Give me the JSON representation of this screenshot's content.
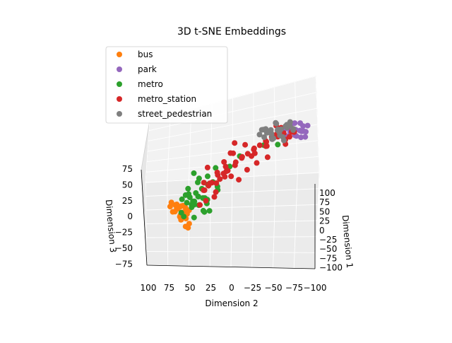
{
  "chart_data": {
    "type": "scatter",
    "projection": "3d",
    "title": "3D t-SNE Embeddings",
    "xlabel": "Dimension 1",
    "ylabel": "Dimension 2",
    "zlabel": "Dimension 3",
    "x_ticks": [
      "100",
      "75",
      "50",
      "25",
      "0",
      "−25",
      "−50",
      "−75",
      "−100"
    ],
    "y_ticks": [
      "100",
      "75",
      "50",
      "25",
      "0",
      "−25",
      "−50",
      "−75",
      "−100"
    ],
    "z_ticks": [
      "75",
      "50",
      "25",
      "0",
      "−25",
      "−50",
      "−75"
    ],
    "xlim": [
      -100,
      100
    ],
    "ylim": [
      -100,
      100
    ],
    "zlim": [
      -80,
      90
    ],
    "grid": true,
    "legend_position": "top-left",
    "series": [
      {
        "name": "bus",
        "color": "#ff7f0e",
        "values": [
          [
            60,
            35,
            -20
          ],
          [
            55,
            40,
            -25
          ],
          [
            58,
            32,
            -30
          ],
          [
            62,
            38,
            -15
          ],
          [
            50,
            36,
            -22
          ],
          [
            64,
            30,
            -28
          ],
          [
            57,
            42,
            -18
          ],
          [
            52,
            30,
            -35
          ],
          [
            48,
            34,
            -26
          ],
          [
            66,
            36,
            -20
          ],
          [
            59,
            28,
            -40
          ],
          [
            61,
            45,
            -12
          ],
          [
            54,
            44,
            -30
          ],
          [
            46,
            40,
            -24
          ],
          [
            63,
            33,
            -33
          ],
          [
            56,
            37,
            -38
          ],
          [
            68,
            40,
            -25
          ],
          [
            51,
            38,
            -45
          ],
          [
            58,
            48,
            -20
          ],
          [
            49,
            29,
            -30
          ],
          [
            55,
            26,
            -50
          ],
          [
            62,
            27,
            -52
          ],
          [
            60,
            25,
            -55
          ],
          [
            45,
            35,
            -35
          ]
        ]
      },
      {
        "name": "park",
        "color": "#9467bd",
        "values": [
          [
            -60,
            -50,
            60
          ],
          [
            -55,
            -45,
            65
          ],
          [
            -65,
            -55,
            55
          ],
          [
            -50,
            -60,
            62
          ],
          [
            -70,
            -40,
            58
          ],
          [
            -58,
            -52,
            50
          ],
          [
            -62,
            -48,
            70
          ],
          [
            -48,
            -55,
            55
          ],
          [
            -66,
            -62,
            64
          ],
          [
            -53,
            -42,
            52
          ],
          [
            -72,
            -50,
            66
          ],
          [
            -57,
            -58,
            48
          ],
          [
            -61,
            -44,
            68
          ],
          [
            -68,
            -56,
            54
          ],
          [
            -50,
            -48,
            60
          ],
          [
            -64,
            -60,
            46
          ],
          [
            -55,
            -65,
            58
          ],
          [
            -75,
            -52,
            60
          ],
          [
            -45,
            -50,
            66
          ],
          [
            -58,
            -38,
            62
          ]
        ]
      },
      {
        "name": "metro",
        "color": "#2ca02c",
        "values": [
          [
            45,
            30,
            -10
          ],
          [
            40,
            25,
            -5
          ],
          [
            35,
            20,
            0
          ],
          [
            50,
            22,
            -15
          ],
          [
            42,
            35,
            -20
          ],
          [
            38,
            28,
            -25
          ],
          [
            48,
            18,
            -8
          ],
          [
            30,
            15,
            5
          ],
          [
            44,
            12,
            -12
          ],
          [
            36,
            32,
            -30
          ],
          [
            52,
            28,
            -2
          ],
          [
            28,
            22,
            -18
          ],
          [
            40,
            10,
            8
          ],
          [
            46,
            40,
            -35
          ],
          [
            33,
            26,
            10
          ],
          [
            25,
            18,
            -22
          ],
          [
            55,
            15,
            -5
          ],
          [
            38,
            5,
            12
          ],
          [
            20,
            20,
            15
          ],
          [
            50,
            35,
            -40
          ],
          [
            30,
            35,
            -28
          ],
          [
            42,
            20,
            20
          ],
          [
            15,
            10,
            -10
          ],
          [
            35,
            40,
            -10
          ],
          [
            47,
            8,
            -20
          ],
          [
            22,
            30,
            -32
          ],
          [
            58,
            20,
            -12
          ],
          [
            32,
            12,
            -38
          ],
          [
            10,
            15,
            25
          ],
          [
            40,
            42,
            -15
          ],
          [
            26,
            5,
            0
          ],
          [
            45,
            25,
            30
          ],
          [
            18,
            25,
            -45
          ],
          [
            52,
            10,
            -30
          ],
          [
            34,
            30,
            -48
          ],
          [
            0,
            -10,
            40
          ],
          [
            -20,
            -30,
            50
          ],
          [
            -35,
            -40,
            45
          ],
          [
            5,
            0,
            25
          ],
          [
            60,
            25,
            10
          ]
        ]
      },
      {
        "name": "metro_station",
        "color": "#d62728",
        "values": [
          [
            10,
            0,
            20
          ],
          [
            5,
            5,
            25
          ],
          [
            0,
            -5,
            30
          ],
          [
            15,
            10,
            15
          ],
          [
            -5,
            -10,
            35
          ],
          [
            20,
            5,
            10
          ],
          [
            -10,
            -15,
            40
          ],
          [
            25,
            15,
            5
          ],
          [
            -15,
            -20,
            45
          ],
          [
            8,
            -8,
            28
          ],
          [
            -20,
            -25,
            50
          ],
          [
            12,
            12,
            18
          ],
          [
            -25,
            -30,
            55
          ],
          [
            18,
            -2,
            22
          ],
          [
            -30,
            -35,
            60
          ],
          [
            3,
            8,
            32
          ],
          [
            -35,
            -40,
            58
          ],
          [
            22,
            18,
            0
          ],
          [
            -40,
            -45,
            62
          ],
          [
            -2,
            -12,
            38
          ],
          [
            28,
            20,
            -5
          ],
          [
            -8,
            2,
            42
          ],
          [
            -45,
            -35,
            55
          ],
          [
            14,
            -6,
            12
          ],
          [
            -12,
            -22,
            48
          ],
          [
            30,
            10,
            8
          ],
          [
            -18,
            -8,
            52
          ],
          [
            6,
            16,
            -2
          ],
          [
            -28,
            -42,
            65
          ],
          [
            -50,
            -50,
            60
          ],
          [
            24,
            8,
            -10
          ],
          [
            -22,
            -18,
            36
          ],
          [
            2,
            -20,
            18
          ],
          [
            -32,
            -28,
            44
          ],
          [
            16,
            22,
            28
          ],
          [
            -38,
            -48,
            52
          ],
          [
            -6,
            -28,
            26
          ],
          [
            32,
            6,
            -15
          ],
          [
            -48,
            -38,
            68
          ],
          [
            11,
            -14,
            5
          ],
          [
            -26,
            -12,
            30
          ],
          [
            -55,
            -45,
            50
          ],
          [
            20,
            25,
            -8
          ],
          [
            -14,
            -36,
            58
          ],
          [
            7,
            -2,
            48
          ],
          [
            -42,
            -22,
            40
          ],
          [
            26,
            -4,
            16
          ],
          [
            -60,
            -40,
            64
          ],
          [
            -4,
            12,
            10
          ],
          [
            -34,
            -50,
            46
          ],
          [
            35,
            15,
            -20
          ],
          [
            -16,
            4,
            56
          ],
          [
            -52,
            -30,
            70
          ],
          [
            13,
            28,
            2
          ],
          [
            -44,
            -56,
            62
          ],
          [
            40,
            20,
            -25
          ],
          [
            -9,
            -40,
            34
          ]
        ]
      },
      {
        "name": "street_pedestrian",
        "color": "#7f7f7f",
        "values": [
          [
            -40,
            -30,
            60
          ],
          [
            -45,
            -35,
            65
          ],
          [
            -35,
            -40,
            70
          ],
          [
            -50,
            -25,
            58
          ],
          [
            -30,
            -45,
            62
          ],
          [
            -55,
            -40,
            68
          ],
          [
            -42,
            -20,
            55
          ],
          [
            -38,
            -50,
            72
          ],
          [
            -48,
            -32,
            75
          ],
          [
            -32,
            -28,
            66
          ],
          [
            -58,
            -48,
            60
          ],
          [
            -44,
            -42,
            54
          ],
          [
            -36,
            -22,
            70
          ],
          [
            -52,
            -36,
            64
          ],
          [
            -28,
            -38,
            58
          ],
          [
            -46,
            -50,
            78
          ],
          [
            -40,
            -18,
            68
          ],
          [
            -60,
            -30,
            56
          ],
          [
            -34,
            -48,
            52
          ],
          [
            -50,
            -44,
            72
          ],
          [
            -25,
            -30,
            75
          ],
          [
            -55,
            -22,
            62
          ],
          [
            -38,
            -36,
            80
          ],
          [
            -62,
            -42,
            66
          ],
          [
            -30,
            -20,
            64
          ],
          [
            -46,
            -28,
            50
          ],
          [
            -20,
            -40,
            60
          ],
          [
            -42,
            -56,
            68
          ]
        ]
      }
    ]
  },
  "legend_items": [
    "bus",
    "park",
    "metro",
    "metro_station",
    "street_pedestrian"
  ]
}
